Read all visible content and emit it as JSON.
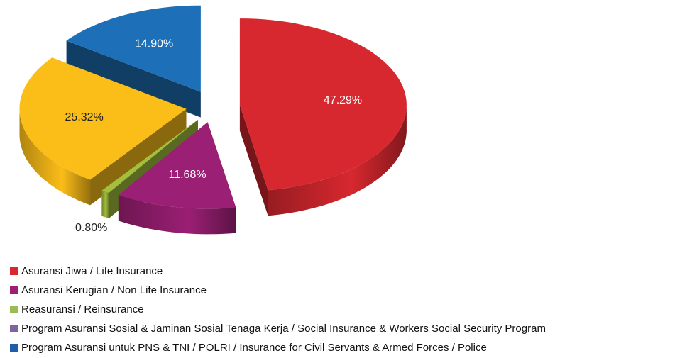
{
  "chart_data": {
    "type": "pie",
    "categories": [
      "Asuransi Jiwa / Life Insurance",
      "Asuransi Kerugian / Non Life Insurance",
      "Reasuransi / Reinsurance",
      "Program Asuransi Sosial & Jaminan Sosial Tenaga Kerja / Social Insurance & Workers Social Security Program",
      "Program Asuransi untuk PNS & TNI / POLRI / Insurance for Civil Servants & Armed Forces / Police"
    ],
    "values": [
      47.29,
      11.68,
      0.8,
      25.32,
      14.9
    ],
    "value_labels": [
      "47.29%",
      "11.68%",
      "0.80%",
      "25.32%",
      "14.90%"
    ],
    "colors": [
      "#d7282f",
      "#9b1f74",
      "#a3bf3c",
      "#fbbd18",
      "#1d70b8"
    ],
    "legend_colors": [
      "#d7282f",
      "#9b1f74",
      "#9bbb59",
      "#8064a2",
      "#1f5fa8"
    ]
  }
}
